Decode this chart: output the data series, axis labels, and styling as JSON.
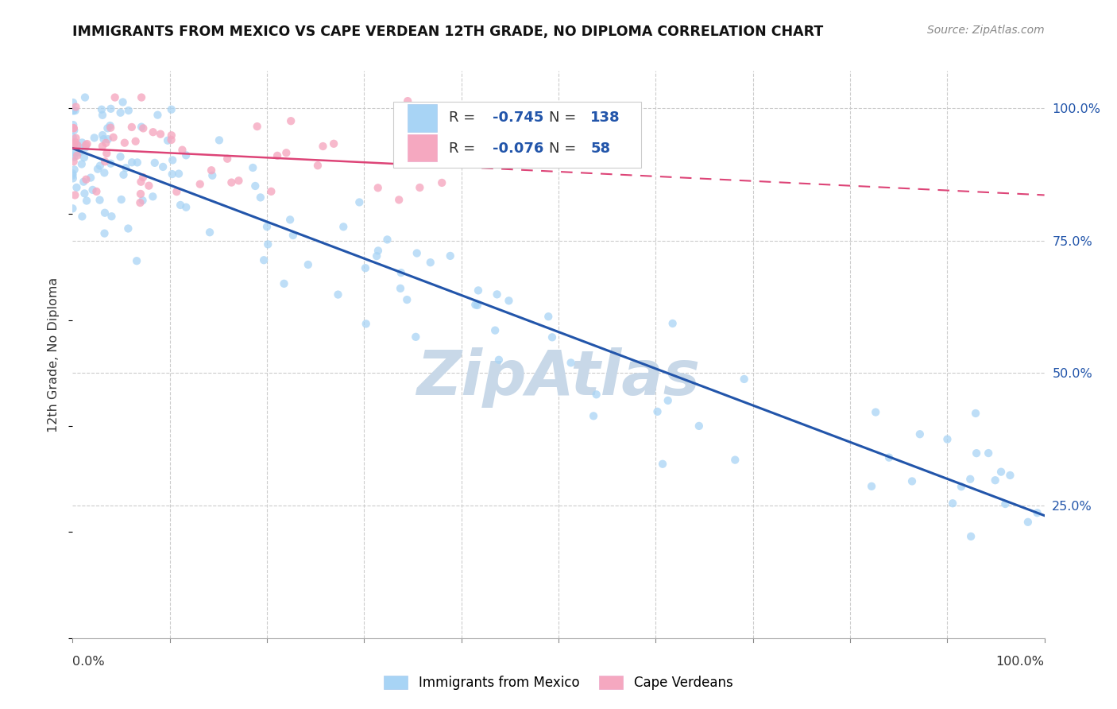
{
  "title": "IMMIGRANTS FROM MEXICO VS CAPE VERDEAN 12TH GRADE, NO DIPLOMA CORRELATION CHART",
  "source": "Source: ZipAtlas.com",
  "ylabel": "12th Grade, No Diploma",
  "legend_label_blue": "Immigrants from Mexico",
  "legend_label_pink": "Cape Verdeans",
  "R_blue": -0.745,
  "N_blue": 138,
  "R_pink": -0.076,
  "N_pink": 58,
  "blue_color": "#A8D4F5",
  "pink_color": "#F5A8C0",
  "blue_line_color": "#2255AA",
  "pink_line_color": "#DD4477",
  "watermark": "ZipAtlas",
  "watermark_color": "#C8D8E8",
  "grid_color": "#CCCCCC",
  "grid_linestyle": "--"
}
